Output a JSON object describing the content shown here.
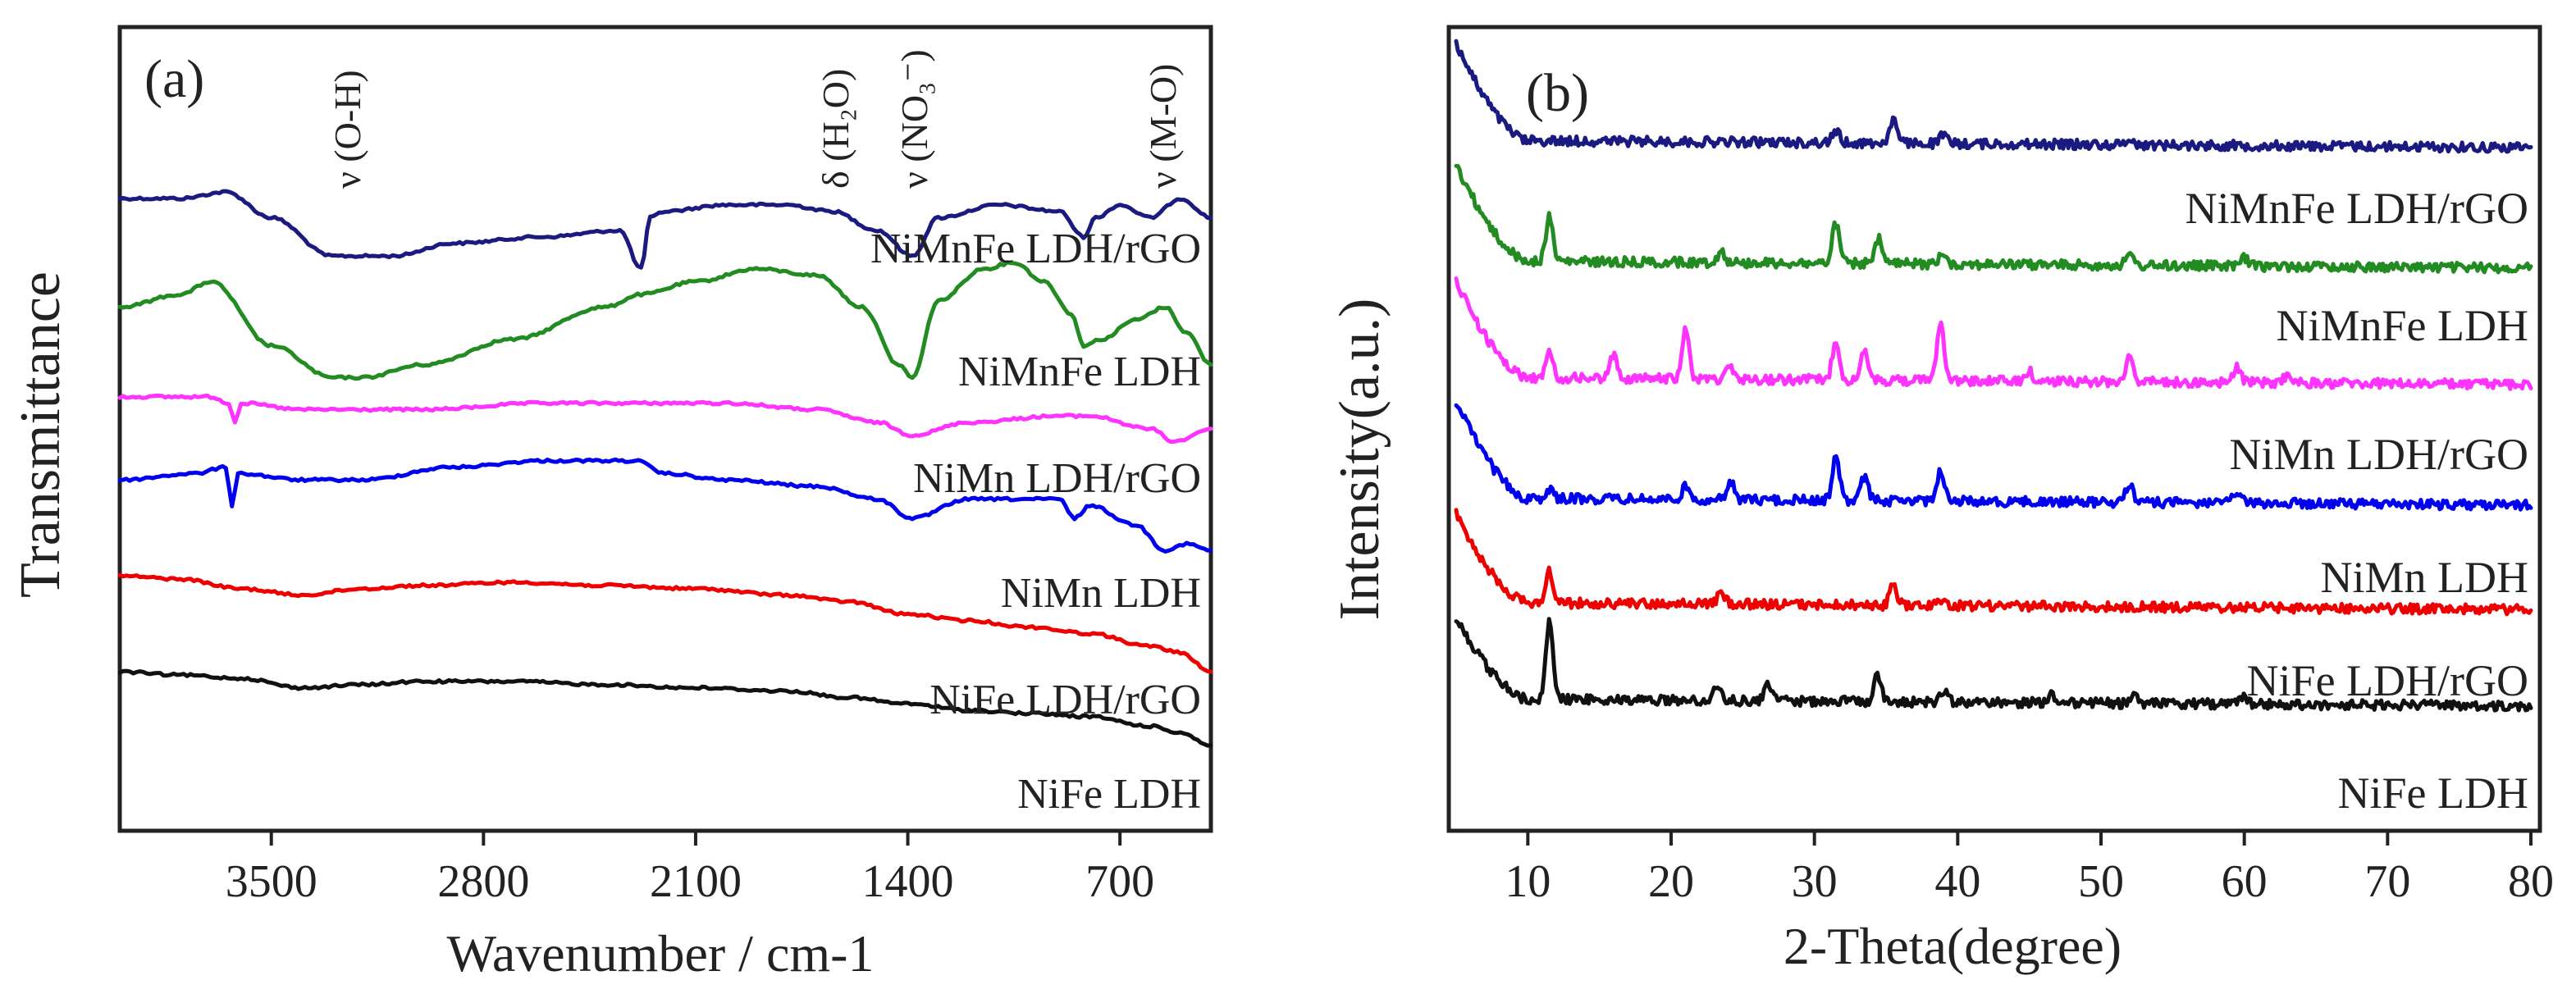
{
  "chart_data": [
    {
      "panel": "(a)",
      "type": "line",
      "xlabel": "Wavenumber / cm-1",
      "ylabel": "Transmittance",
      "xlim": [
        4000,
        400
      ],
      "xticks": [
        3500,
        2800,
        2100,
        1400,
        700
      ],
      "annotations": [
        {
          "text": "ν (O-H)",
          "x": 3250
        },
        {
          "text": "δ (H₂O)",
          "x": 1640
        },
        {
          "text": "ν (NO₃⁻)",
          "x": 1380
        },
        {
          "text": "ν (M-O)",
          "x": 560
        }
      ],
      "series": [
        {
          "name": "NiMnFe LDH/rGO",
          "color": "#1a1a80",
          "offset": 0.0,
          "points": [
            [
              4000,
              0.05
            ],
            [
              3800,
              0.05
            ],
            [
              3650,
              0.04
            ],
            [
              3500,
              0.08
            ],
            [
              3300,
              0.14
            ],
            [
              3100,
              0.14
            ],
            [
              2900,
              0.12
            ],
            [
              2600,
              0.11
            ],
            [
              2350,
              0.1
            ],
            [
              2280,
              0.16
            ],
            [
              2250,
              0.08
            ],
            [
              2200,
              0.07
            ],
            [
              2000,
              0.06
            ],
            [
              1800,
              0.06
            ],
            [
              1650,
              0.07
            ],
            [
              1500,
              0.1
            ],
            [
              1385,
              0.14
            ],
            [
              1300,
              0.08
            ],
            [
              1100,
              0.06
            ],
            [
              900,
              0.07
            ],
            [
              820,
              0.11
            ],
            [
              780,
              0.08
            ],
            [
              700,
              0.06
            ],
            [
              600,
              0.08
            ],
            [
              500,
              0.05
            ],
            [
              400,
              0.08
            ]
          ]
        },
        {
          "name": "NiMnFe LDH",
          "color": "#228b22",
          "offset": 0.0,
          "points": [
            [
              4000,
              0.22
            ],
            [
              3800,
              0.2
            ],
            [
              3700,
              0.18
            ],
            [
              3500,
              0.28
            ],
            [
              3300,
              0.33
            ],
            [
              3200,
              0.33
            ],
            [
              3000,
              0.31
            ],
            [
              2700,
              0.27
            ],
            [
              2400,
              0.22
            ],
            [
              2280,
              0.2
            ],
            [
              2100,
              0.18
            ],
            [
              1900,
              0.16
            ],
            [
              1700,
              0.17
            ],
            [
              1550,
              0.22
            ],
            [
              1430,
              0.31
            ],
            [
              1385,
              0.33
            ],
            [
              1300,
              0.21
            ],
            [
              1150,
              0.16
            ],
            [
              1050,
              0.15
            ],
            [
              950,
              0.18
            ],
            [
              860,
              0.23
            ],
            [
              820,
              0.28
            ],
            [
              760,
              0.27
            ],
            [
              650,
              0.24
            ],
            [
              550,
              0.22
            ],
            [
              480,
              0.26
            ],
            [
              400,
              0.31
            ]
          ]
        },
        {
          "name": "NiMn LDH/rGO",
          "color": "#ff33ff",
          "offset": 0.0,
          "points": [
            [
              4000,
              0.36
            ],
            [
              3700,
              0.36
            ],
            [
              3640,
              0.37
            ],
            [
              3620,
              0.4
            ],
            [
              3600,
              0.37
            ],
            [
              3400,
              0.38
            ],
            [
              3000,
              0.38
            ],
            [
              2600,
              0.37
            ],
            [
              2300,
              0.37
            ],
            [
              2000,
              0.37
            ],
            [
              1700,
              0.38
            ],
            [
              1500,
              0.4
            ],
            [
              1385,
              0.42
            ],
            [
              1200,
              0.4
            ],
            [
              900,
              0.39
            ],
            [
              800,
              0.39
            ],
            [
              600,
              0.41
            ],
            [
              520,
              0.43
            ],
            [
              400,
              0.41
            ]
          ]
        },
        {
          "name": "NiMn LDH",
          "color": "#0000ee",
          "offset": 0.0,
          "points": [
            [
              4000,
              0.49
            ],
            [
              3750,
              0.48
            ],
            [
              3650,
              0.47
            ],
            [
              3630,
              0.53
            ],
            [
              3610,
              0.48
            ],
            [
              3400,
              0.49
            ],
            [
              3200,
              0.49
            ],
            [
              2900,
              0.47
            ],
            [
              2600,
              0.46
            ],
            [
              2300,
              0.46
            ],
            [
              2200,
              0.48
            ],
            [
              2000,
              0.49
            ],
            [
              1700,
              0.5
            ],
            [
              1500,
              0.52
            ],
            [
              1385,
              0.55
            ],
            [
              1200,
              0.52
            ],
            [
              900,
              0.52
            ],
            [
              850,
              0.55
            ],
            [
              800,
              0.53
            ],
            [
              650,
              0.56
            ],
            [
              550,
              0.6
            ],
            [
              480,
              0.59
            ],
            [
              400,
              0.6
            ]
          ]
        },
        {
          "name": "NiFe LDH/rGO",
          "color": "#ee0000",
          "offset": 0.0,
          "points": [
            [
              4000,
              0.64
            ],
            [
              3800,
              0.645
            ],
            [
              3600,
              0.66
            ],
            [
              3400,
              0.67
            ],
            [
              3200,
              0.66
            ],
            [
              3000,
              0.655
            ],
            [
              2700,
              0.65
            ],
            [
              2400,
              0.655
            ],
            [
              2100,
              0.66
            ],
            [
              1800,
              0.67
            ],
            [
              1600,
              0.68
            ],
            [
              1400,
              0.7
            ],
            [
              1200,
              0.71
            ],
            [
              1000,
              0.72
            ],
            [
              800,
              0.73
            ],
            [
              600,
              0.75
            ],
            [
              500,
              0.76
            ],
            [
              400,
              0.79
            ]
          ]
        },
        {
          "name": "NiFe LDH",
          "color": "#111111",
          "offset": 0.0,
          "points": [
            [
              4000,
              0.79
            ],
            [
              3800,
              0.795
            ],
            [
              3600,
              0.8
            ],
            [
              3400,
              0.815
            ],
            [
              3200,
              0.81
            ],
            [
              3000,
              0.805
            ],
            [
              2700,
              0.805
            ],
            [
              2400,
              0.81
            ],
            [
              2100,
              0.815
            ],
            [
              1800,
              0.82
            ],
            [
              1600,
              0.83
            ],
            [
              1400,
              0.84
            ],
            [
              1200,
              0.85
            ],
            [
              1000,
              0.855
            ],
            [
              800,
              0.86
            ],
            [
              600,
              0.875
            ],
            [
              500,
              0.885
            ],
            [
              400,
              0.905
            ]
          ]
        }
      ],
      "labels": [
        "NiMnFe LDH/rGO",
        "NiMnFe LDH",
        "NiMn LDH/rGO",
        "NiMn LDH",
        "NiFe LDH/rGO",
        "NiFe LDH"
      ]
    },
    {
      "panel": "(b)",
      "type": "line",
      "xlabel": "2-Theta(degree)",
      "ylabel": "Intensity(a.u.)",
      "xlim": [
        5,
        80
      ],
      "xticks": [
        10,
        20,
        30,
        40,
        50,
        60,
        70,
        80
      ],
      "series": [
        {
          "name": "NiMnFe LDH/rGO",
          "color": "#1a1a80",
          "baseline": 0.145,
          "start_rise": 0.12,
          "peaks": [
            [
              31.5,
              0.015
            ],
            [
              35.5,
              0.03
            ],
            [
              39,
              0.01
            ],
            [
              52,
              0.008
            ]
          ]
        },
        {
          "name": "NiMnFe LDH",
          "color": "#228b22",
          "baseline": 0.295,
          "start_rise": 0.12,
          "peaks": [
            [
              11.5,
              0.055
            ],
            [
              23.5,
              0.015
            ],
            [
              31.5,
              0.05
            ],
            [
              34.5,
              0.03
            ],
            [
              39,
              0.015
            ],
            [
              52,
              0.012
            ],
            [
              60,
              0.01
            ]
          ]
        },
        {
          "name": "NiMn LDH/rGO",
          "color": "#ff33ff",
          "baseline": 0.44,
          "start_rise": 0.12,
          "peaks": [
            [
              11.5,
              0.03
            ],
            [
              16,
              0.03
            ],
            [
              21,
              0.06
            ],
            [
              24,
              0.02
            ],
            [
              31.5,
              0.05
            ],
            [
              33.5,
              0.035
            ],
            [
              38.8,
              0.075
            ],
            [
              45,
              0.012
            ],
            [
              52,
              0.035
            ],
            [
              59.5,
              0.02
            ],
            [
              63,
              0.01
            ]
          ]
        },
        {
          "name": "NiMn LDH",
          "color": "#0000ee",
          "baseline": 0.59,
          "start_rise": 0.12,
          "peaks": [
            [
              11.5,
              0.01
            ],
            [
              21,
              0.015
            ],
            [
              24.2,
              0.02
            ],
            [
              31.5,
              0.055
            ],
            [
              33.5,
              0.03
            ],
            [
              38.8,
              0.04
            ],
            [
              52,
              0.025
            ],
            [
              59.5,
              0.015
            ]
          ]
        },
        {
          "name": "NiFe LDH/rGO",
          "color": "#ee0000",
          "baseline": 0.72,
          "start_rise": 0.11,
          "peaks": [
            [
              11.5,
              0.04
            ],
            [
              23.5,
              0.015
            ],
            [
              35.5,
              0.025
            ],
            [
              39,
              0.01
            ]
          ]
        },
        {
          "name": "NiFe LDH",
          "color": "#111111",
          "baseline": 0.84,
          "start_rise": 0.1,
          "peaks": [
            [
              11.5,
              0.095
            ],
            [
              23.2,
              0.02
            ],
            [
              26.8,
              0.02
            ],
            [
              34.4,
              0.035
            ],
            [
              39,
              0.015
            ],
            [
              46.5,
              0.01
            ],
            [
              52.3,
              0.01
            ],
            [
              60,
              0.008
            ]
          ]
        }
      ],
      "labels": [
        "NiMnFe LDH/rGO",
        "NiMnFe LDH",
        "NiMn LDH/rGO",
        "NiMn LDH",
        "NiFe LDH/rGO",
        "NiFe LDH"
      ]
    }
  ]
}
